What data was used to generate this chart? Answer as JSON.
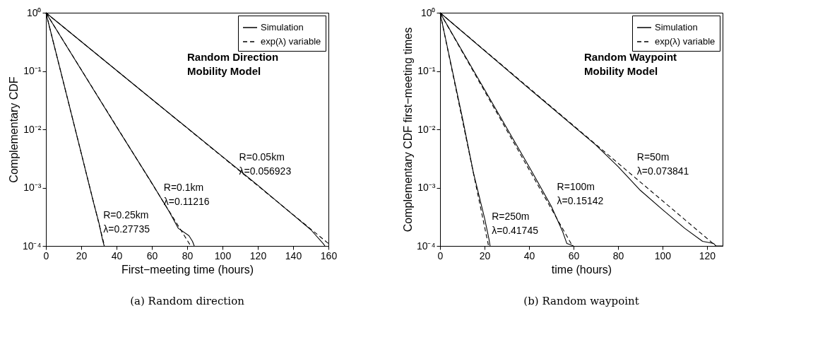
{
  "chart_data": [
    {
      "type": "line",
      "title": "(a) Random direction",
      "xlabel": "First−meeting time (hours)",
      "ylabel": "Complementary CDF",
      "log": "y",
      "legend": "top right",
      "grid": false,
      "xlim": [
        0,
        160
      ],
      "xticks": [
        0,
        20,
        40,
        60,
        80,
        100,
        120,
        140,
        160
      ],
      "ylim": [
        0.0001,
        1
      ],
      "yticks": [
        {
          "value": 0.0001,
          "label": "10⁻⁴"
        },
        {
          "value": 0.001,
          "label": "10⁻³"
        },
        {
          "value": 0.01,
          "label": "10⁻²"
        },
        {
          "value": 0.1,
          "label": "10⁻¹"
        },
        {
          "value": 1,
          "label": "10⁰"
        }
      ],
      "series": [
        {
          "name": "Simulation",
          "color": "#000000",
          "line_style": "solid",
          "x": [
            0,
            10,
            20,
            27,
            30,
            32,
            33
          ],
          "values": [
            1,
            0.063,
            0.0039,
            0.00055,
            0.00025,
            0.00013,
            0.0001
          ]
        },
        {
          "name": "exp(λ) variable",
          "color": "#000000",
          "line_style": "dashed",
          "x": [
            0,
            33.2
          ],
          "values": [
            1,
            0.0001
          ]
        },
        {
          "color": "#000000",
          "line_style": "solid",
          "x": [
            0,
            20,
            40,
            60,
            70,
            75,
            81,
            83,
            84
          ],
          "values": [
            1,
            0.105,
            0.011,
            0.0012,
            0.00038,
            0.0002,
            0.00015,
            0.00012,
            0.0001
          ]
        },
        {
          "color": "#000000",
          "line_style": "dashed",
          "x": [
            0,
            82
          ],
          "values": [
            1,
            0.0001
          ]
        },
        {
          "color": "#000000",
          "line_style": "solid",
          "x": [
            0,
            50,
            100,
            120,
            140,
            150,
            157,
            158
          ],
          "values": [
            1,
            0.058,
            0.0034,
            0.0011,
            0.00034,
            0.00019,
            0.00011,
            0.0001
          ]
        },
        {
          "color": "#000000",
          "line_style": "dashed",
          "x": [
            0,
            160
          ],
          "values": [
            1,
            0.00011
          ]
        }
      ],
      "annotations": [
        "Random Direction\nMobility Model",
        "R=0.25km\nλ=0.27735",
        "R=0.1km\nλ=0.11216",
        "R=0.05km\nλ=0.056923"
      ]
    },
    {
      "type": "line",
      "title": "(b) Random waypoint",
      "xlabel": "time (hours)",
      "ylabel": "Complementary CDF first−meeting times",
      "log": "y",
      "legend": "top right",
      "grid": false,
      "xlim": [
        0,
        127
      ],
      "xticks": [
        0,
        20,
        40,
        60,
        80,
        100,
        120
      ],
      "ylim": [
        0.0001,
        1
      ],
      "yticks": [
        {
          "value": 0.0001,
          "label": "10⁻⁴"
        },
        {
          "value": 0.001,
          "label": "10⁻³"
        },
        {
          "value": 0.01,
          "label": "10⁻²"
        },
        {
          "value": 0.1,
          "label": "10⁻¹"
        },
        {
          "value": 1,
          "label": "10⁰"
        }
      ],
      "series": [
        {
          "name": "Simulation",
          "color": "#000000",
          "line_style": "solid",
          "x": [
            0,
            10,
            15,
            20,
            22,
            22.5
          ],
          "values": [
            1,
            0.016,
            0.0018,
            0.0003,
            0.00013,
            0.0001
          ]
        },
        {
          "name": "exp(λ) variable",
          "color": "#000000",
          "line_style": "dashed",
          "x": [
            0,
            21.8
          ],
          "values": [
            1,
            0.0001
          ]
        },
        {
          "color": "#000000",
          "line_style": "solid",
          "x": [
            0,
            20,
            40,
            50,
            55,
            57,
            60
          ],
          "values": [
            1,
            0.048,
            0.0023,
            0.00048,
            0.00018,
            0.00011,
            0.0001
          ]
        },
        {
          "color": "#000000",
          "line_style": "dashed",
          "x": [
            0,
            59.5
          ],
          "values": [
            1,
            0.0001
          ]
        },
        {
          "color": "#000000",
          "line_style": "solid",
          "x": [
            0,
            40,
            70,
            80,
            90,
            100,
            110,
            118,
            123,
            124,
            127
          ],
          "values": [
            1,
            0.05,
            0.0054,
            0.0023,
            0.0009,
            0.00042,
            0.0002,
            0.00012,
            0.00011,
            0.0001,
            0.0001
          ]
        },
        {
          "color": "#000000",
          "line_style": "dashed",
          "x": [
            0,
            124
          ],
          "values": [
            1,
            0.0001
          ]
        }
      ],
      "annotations": [
        "Random Waypoint\nMobility Model",
        "R=250m\nλ=0.41745",
        "R=100m\nλ=0.15142",
        "R=50m\nλ=0.073841"
      ]
    }
  ]
}
